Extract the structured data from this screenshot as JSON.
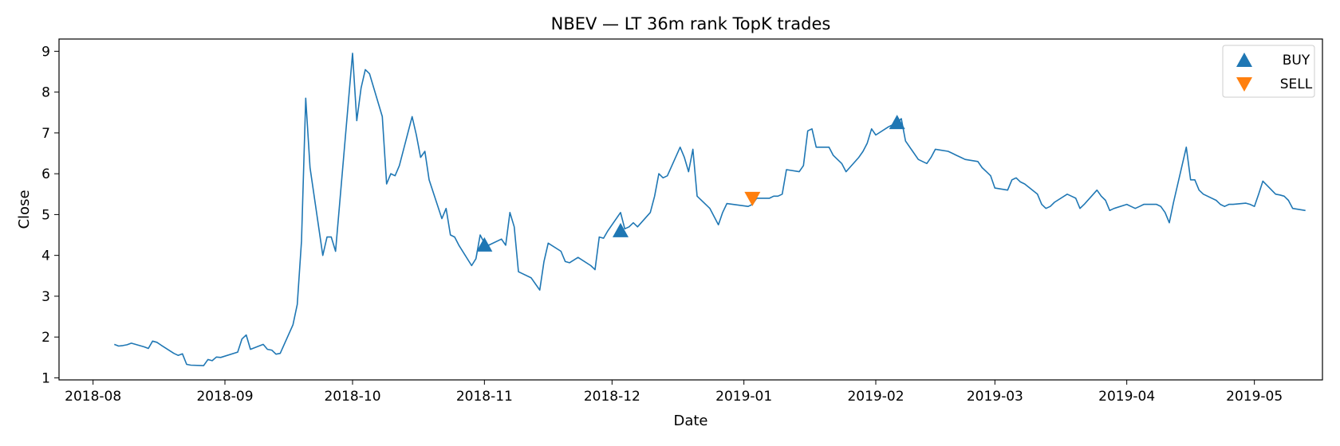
{
  "chart_data": {
    "type": "line",
    "title": "NBEV — LT 36m rank TopK trades",
    "xlabel": "Date",
    "ylabel": "Close",
    "xlim": [
      "2018-07-24",
      "2019-05-17"
    ],
    "ylim": [
      0.95,
      9.3
    ],
    "x_ticks": [
      "2018-08",
      "2018-09",
      "2018-10",
      "2018-11",
      "2018-12",
      "2019-01",
      "2019-02",
      "2019-03",
      "2019-04",
      "2019-05"
    ],
    "y_ticks": [
      "1",
      "2",
      "3",
      "4",
      "5",
      "6",
      "7",
      "8",
      "9"
    ],
    "grid": false,
    "legend_position": "top-right",
    "series": [
      {
        "name": "Close",
        "color": "#1f77b4",
        "points": [
          [
            "2018-08-06",
            1.82
          ],
          [
            "2018-08-07",
            1.78
          ],
          [
            "2018-08-08",
            1.79
          ],
          [
            "2018-08-09",
            1.81
          ],
          [
            "2018-08-10",
            1.85
          ],
          [
            "2018-08-13",
            1.76
          ],
          [
            "2018-08-14",
            1.72
          ],
          [
            "2018-08-15",
            1.9
          ],
          [
            "2018-08-16",
            1.87
          ],
          [
            "2018-08-17",
            1.8
          ],
          [
            "2018-08-20",
            1.6
          ],
          [
            "2018-08-21",
            1.55
          ],
          [
            "2018-08-22",
            1.59
          ],
          [
            "2018-08-23",
            1.33
          ],
          [
            "2018-08-24",
            1.31
          ],
          [
            "2018-08-27",
            1.3
          ],
          [
            "2018-08-28",
            1.45
          ],
          [
            "2018-08-29",
            1.42
          ],
          [
            "2018-08-30",
            1.51
          ],
          [
            "2018-08-31",
            1.5
          ],
          [
            "2018-09-04",
            1.63
          ],
          [
            "2018-09-05",
            1.95
          ],
          [
            "2018-09-06",
            2.05
          ],
          [
            "2018-09-07",
            1.7
          ],
          [
            "2018-09-10",
            1.82
          ],
          [
            "2018-09-11",
            1.7
          ],
          [
            "2018-09-12",
            1.68
          ],
          [
            "2018-09-13",
            1.58
          ],
          [
            "2018-09-14",
            1.6
          ],
          [
            "2018-09-17",
            2.3
          ],
          [
            "2018-09-18",
            2.8
          ],
          [
            "2018-09-19",
            4.35
          ],
          [
            "2018-09-20",
            7.85
          ],
          [
            "2018-09-21",
            6.15
          ],
          [
            "2018-09-24",
            4.0
          ],
          [
            "2018-09-25",
            4.45
          ],
          [
            "2018-09-26",
            4.45
          ],
          [
            "2018-09-27",
            4.1
          ],
          [
            "2018-10-01",
            8.95
          ],
          [
            "2018-10-02",
            7.3
          ],
          [
            "2018-10-03",
            8.1
          ],
          [
            "2018-10-04",
            8.55
          ],
          [
            "2018-10-05",
            8.45
          ],
          [
            "2018-10-08",
            7.4
          ],
          [
            "2018-10-09",
            5.75
          ],
          [
            "2018-10-10",
            6.0
          ],
          [
            "2018-10-11",
            5.95
          ],
          [
            "2018-10-12",
            6.2
          ],
          [
            "2018-10-15",
            7.4
          ],
          [
            "2018-10-16",
            6.95
          ],
          [
            "2018-10-17",
            6.4
          ],
          [
            "2018-10-18",
            6.55
          ],
          [
            "2018-10-19",
            5.85
          ],
          [
            "2018-10-22",
            4.9
          ],
          [
            "2018-10-23",
            5.15
          ],
          [
            "2018-10-24",
            4.5
          ],
          [
            "2018-10-25",
            4.45
          ],
          [
            "2018-10-26",
            4.25
          ],
          [
            "2018-10-29",
            3.75
          ],
          [
            "2018-10-30",
            3.92
          ],
          [
            "2018-10-31",
            4.5
          ],
          [
            "2018-11-01",
            4.3
          ],
          [
            "2018-11-02",
            4.25
          ],
          [
            "2018-11-05",
            4.4
          ],
          [
            "2018-11-06",
            4.25
          ],
          [
            "2018-11-07",
            5.05
          ],
          [
            "2018-11-08",
            4.7
          ],
          [
            "2018-11-09",
            3.6
          ],
          [
            "2018-11-12",
            3.45
          ],
          [
            "2018-11-13",
            3.3
          ],
          [
            "2018-11-14",
            3.15
          ],
          [
            "2018-11-15",
            3.85
          ],
          [
            "2018-11-16",
            4.3
          ],
          [
            "2018-11-19",
            4.1
          ],
          [
            "2018-11-20",
            3.85
          ],
          [
            "2018-11-21",
            3.82
          ],
          [
            "2018-11-23",
            3.95
          ],
          [
            "2018-11-26",
            3.75
          ],
          [
            "2018-11-27",
            3.65
          ],
          [
            "2018-11-28",
            4.45
          ],
          [
            "2018-11-29",
            4.42
          ],
          [
            "2018-11-30",
            4.6
          ],
          [
            "2018-12-03",
            5.05
          ],
          [
            "2018-12-04",
            4.65
          ],
          [
            "2018-12-05",
            4.7
          ],
          [
            "2018-12-06",
            4.8
          ],
          [
            "2018-12-07",
            4.7
          ],
          [
            "2018-12-10",
            5.05
          ],
          [
            "2018-12-11",
            5.45
          ],
          [
            "2018-12-12",
            6.0
          ],
          [
            "2018-12-13",
            5.9
          ],
          [
            "2018-12-14",
            5.95
          ],
          [
            "2018-12-17",
            6.65
          ],
          [
            "2018-12-18",
            6.4
          ],
          [
            "2018-12-19",
            6.05
          ],
          [
            "2018-12-20",
            6.6
          ],
          [
            "2018-12-21",
            5.45
          ],
          [
            "2018-12-24",
            5.15
          ],
          [
            "2018-12-26",
            4.75
          ],
          [
            "2018-12-27",
            5.05
          ],
          [
            "2018-12-28",
            5.27
          ],
          [
            "2019-01-02",
            5.2
          ],
          [
            "2019-01-03",
            5.25
          ],
          [
            "2019-01-04",
            5.4
          ],
          [
            "2019-01-07",
            5.4
          ],
          [
            "2019-01-08",
            5.45
          ],
          [
            "2019-01-09",
            5.45
          ],
          [
            "2019-01-10",
            5.5
          ],
          [
            "2019-01-11",
            6.1
          ],
          [
            "2019-01-14",
            6.05
          ],
          [
            "2019-01-15",
            6.2
          ],
          [
            "2019-01-16",
            7.05
          ],
          [
            "2019-01-17",
            7.1
          ],
          [
            "2019-01-18",
            6.65
          ],
          [
            "2019-01-21",
            6.65
          ],
          [
            "2019-01-22",
            6.45
          ],
          [
            "2019-01-23",
            6.35
          ],
          [
            "2019-01-24",
            6.25
          ],
          [
            "2019-01-25",
            6.05
          ],
          [
            "2019-01-28",
            6.4
          ],
          [
            "2019-01-29",
            6.55
          ],
          [
            "2019-01-30",
            6.75
          ],
          [
            "2019-01-31",
            7.1
          ],
          [
            "2019-02-01",
            6.95
          ],
          [
            "2019-02-04",
            7.15
          ],
          [
            "2019-02-05",
            7.2
          ],
          [
            "2019-02-06",
            7.25
          ],
          [
            "2019-02-07",
            7.35
          ],
          [
            "2019-02-08",
            6.8
          ],
          [
            "2019-02-11",
            6.35
          ],
          [
            "2019-02-12",
            6.3
          ],
          [
            "2019-02-13",
            6.25
          ],
          [
            "2019-02-14",
            6.4
          ],
          [
            "2019-02-15",
            6.6
          ],
          [
            "2019-02-18",
            6.55
          ],
          [
            "2019-02-19",
            6.5
          ],
          [
            "2019-02-20",
            6.45
          ],
          [
            "2019-02-21",
            6.4
          ],
          [
            "2019-02-22",
            6.35
          ],
          [
            "2019-02-25",
            6.3
          ],
          [
            "2019-02-26",
            6.15
          ],
          [
            "2019-02-27",
            6.05
          ],
          [
            "2019-02-28",
            5.95
          ],
          [
            "2019-03-01",
            5.65
          ],
          [
            "2019-03-04",
            5.6
          ],
          [
            "2019-03-05",
            5.85
          ],
          [
            "2019-03-06",
            5.9
          ],
          [
            "2019-03-07",
            5.8
          ],
          [
            "2019-03-08",
            5.75
          ],
          [
            "2019-03-11",
            5.5
          ],
          [
            "2019-03-12",
            5.25
          ],
          [
            "2019-03-13",
            5.15
          ],
          [
            "2019-03-14",
            5.2
          ],
          [
            "2019-03-15",
            5.3
          ],
          [
            "2019-03-18",
            5.5
          ],
          [
            "2019-03-19",
            5.45
          ],
          [
            "2019-03-20",
            5.4
          ],
          [
            "2019-03-21",
            5.15
          ],
          [
            "2019-03-22",
            5.25
          ],
          [
            "2019-03-25",
            5.6
          ],
          [
            "2019-03-26",
            5.45
          ],
          [
            "2019-03-27",
            5.35
          ],
          [
            "2019-03-28",
            5.1
          ],
          [
            "2019-03-29",
            5.15
          ],
          [
            "2019-04-01",
            5.25
          ],
          [
            "2019-04-02",
            5.2
          ],
          [
            "2019-04-03",
            5.15
          ],
          [
            "2019-04-04",
            5.2
          ],
          [
            "2019-04-05",
            5.25
          ],
          [
            "2019-04-08",
            5.25
          ],
          [
            "2019-04-09",
            5.2
          ],
          [
            "2019-04-10",
            5.05
          ],
          [
            "2019-04-11",
            4.8
          ],
          [
            "2019-04-12",
            5.3
          ],
          [
            "2019-04-15",
            6.65
          ],
          [
            "2019-04-16",
            5.85
          ],
          [
            "2019-04-17",
            5.85
          ],
          [
            "2019-04-18",
            5.6
          ],
          [
            "2019-04-19",
            5.5
          ],
          [
            "2019-04-22",
            5.35
          ],
          [
            "2019-04-23",
            5.25
          ],
          [
            "2019-04-24",
            5.2
          ],
          [
            "2019-04-25",
            5.25
          ],
          [
            "2019-04-26",
            5.25
          ],
          [
            "2019-04-29",
            5.28
          ],
          [
            "2019-04-30",
            5.25
          ],
          [
            "2019-05-01",
            5.2
          ],
          [
            "2019-05-02",
            5.5
          ],
          [
            "2019-05-03",
            5.82
          ],
          [
            "2019-05-06",
            5.5
          ],
          [
            "2019-05-07",
            5.48
          ],
          [
            "2019-05-08",
            5.45
          ],
          [
            "2019-05-09",
            5.35
          ],
          [
            "2019-05-10",
            5.15
          ],
          [
            "2019-05-13",
            5.1
          ]
        ]
      }
    ],
    "markers": [
      {
        "name": "BUY",
        "symbol": "triangle-up",
        "color": "#1f77b4",
        "points": [
          [
            "2018-11-01",
            4.25
          ],
          [
            "2018-12-03",
            4.6
          ],
          [
            "2019-02-06",
            7.25
          ]
        ]
      },
      {
        "name": "SELL",
        "symbol": "triangle-down",
        "color": "#ff7f0e",
        "points": [
          [
            "2019-01-03",
            5.4
          ]
        ]
      }
    ]
  }
}
